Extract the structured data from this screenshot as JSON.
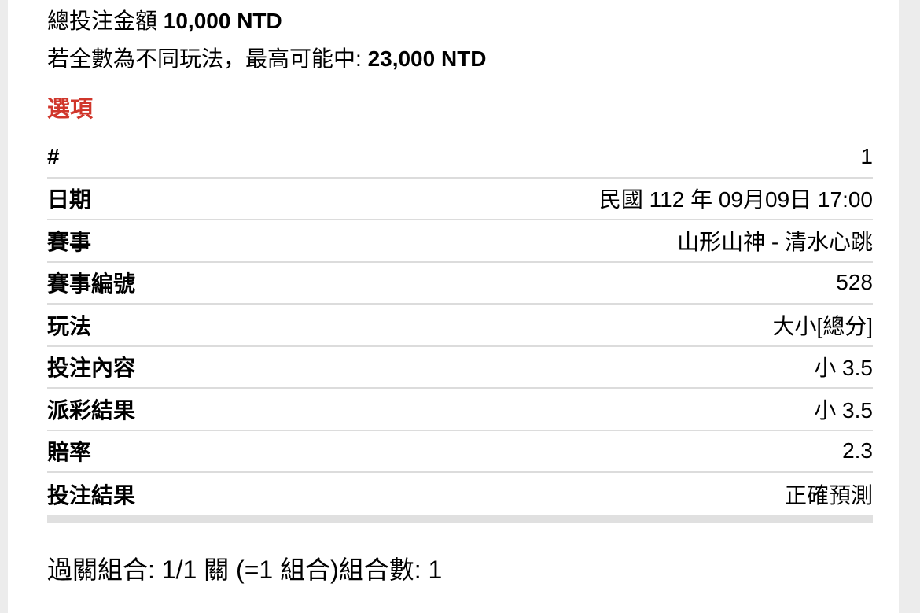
{
  "summary": {
    "total_label": "總投注金額 ",
    "total_value": "10,000 NTD",
    "max_win_label": "若全數為不同玩法，最高可能中: ",
    "max_win_value": "23,000 NTD"
  },
  "section_title": "選項",
  "bet_details": {
    "rows": [
      {
        "label": "#",
        "value": "1"
      },
      {
        "label": "日期",
        "value": "民國 112 年 09月09日 17:00"
      },
      {
        "label": "賽事",
        "value": "山形山神 - 清水心跳"
      },
      {
        "label": "賽事編號",
        "value": "528"
      },
      {
        "label": "玩法",
        "value": "大小[總分]"
      },
      {
        "label": "投注內容",
        "value": "小 3.5"
      },
      {
        "label": "派彩結果",
        "value": "小 3.5"
      },
      {
        "label": "賠率",
        "value": "2.3"
      },
      {
        "label": "投注結果",
        "value": "正確預測"
      }
    ]
  },
  "footer": {
    "combo_text": "過關組合: 1/1 關 (=1 組合)組合數: 1"
  },
  "colors": {
    "accent_red": "#d0362b",
    "row_separator": "#dcdcdc",
    "thick_divider": "#e0e0e0",
    "edge_strip": "#ececec"
  }
}
